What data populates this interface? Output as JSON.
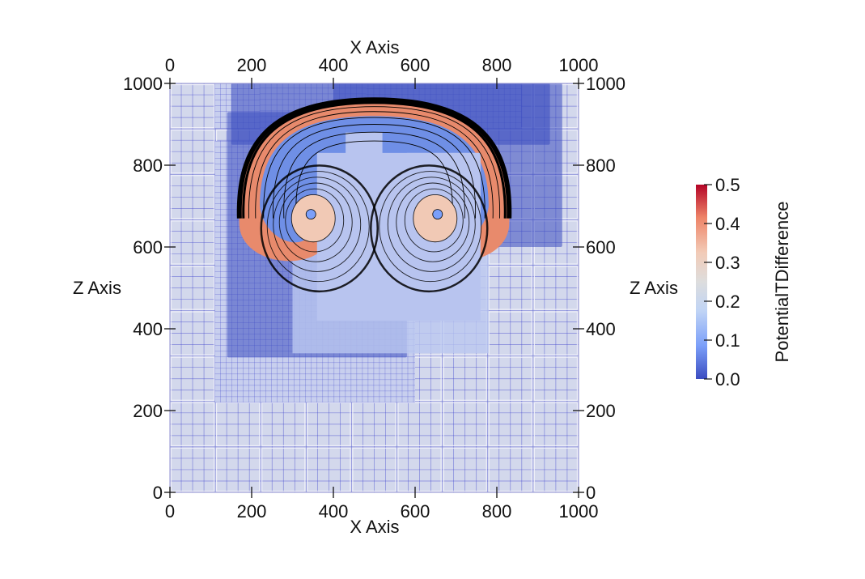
{
  "chart_data": {
    "type": "heatmap",
    "title": "",
    "x_axis": {
      "label": "X Axis",
      "range": [
        0,
        1000
      ],
      "ticks": [
        0,
        200,
        400,
        600,
        800,
        1000
      ],
      "tick_labels": [
        "0",
        "200",
        "400",
        "600",
        "800",
        "1000"
      ]
    },
    "z_axis": {
      "label": "Z Axis",
      "range": [
        0,
        1000
      ],
      "ticks": [
        0,
        200,
        400,
        600,
        800,
        1000
      ],
      "tick_labels": [
        "0",
        "200",
        "400",
        "600",
        "800",
        "1000"
      ]
    },
    "colorbar": {
      "label": "PotentialTDifference",
      "range": [
        0.0,
        0.5
      ],
      "ticks": [
        0.0,
        0.1,
        0.2,
        0.3,
        0.4,
        0.5
      ],
      "tick_labels": [
        "0.0",
        "0.1",
        "0.2",
        "0.3",
        "0.4",
        "0.5"
      ],
      "colormap": [
        "#3b4cc0",
        "#7b9ff9",
        "#c0d4f5",
        "#dddddd",
        "#f2cbb7",
        "#ee8468",
        "#b40426"
      ],
      "placement": "right"
    },
    "field": {
      "background_value": 0.2,
      "mesh_line_color": "#3a3fcc",
      "contour_color": "#000000",
      "thermal_cap": {
        "center_x": 500,
        "top_z": 960,
        "outer_half_width": 330,
        "curl_centers": [
          [
            345,
            680
          ],
          [
            655,
            680
          ]
        ],
        "max_value": 0.5
      }
    },
    "mesh": {
      "coarse_block_size": 111.1,
      "refinement_levels": 3
    }
  }
}
